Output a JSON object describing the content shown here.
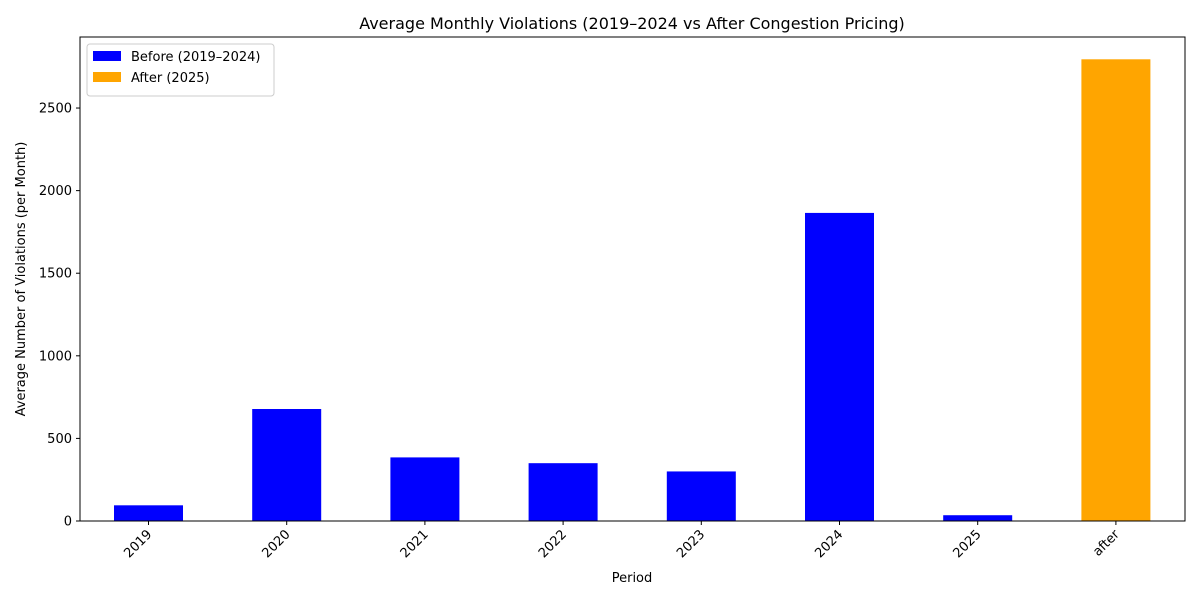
{
  "chart_data": {
    "type": "bar",
    "title": "Average Monthly Violations (2019–2024 vs After Congestion Pricing)",
    "xlabel": "Period",
    "ylabel": "Average Number of Violations (per Month)",
    "categories": [
      "2019",
      "2020",
      "2021",
      "2022",
      "2023",
      "2024",
      "2025",
      "after"
    ],
    "values": [
      95,
      678,
      385,
      350,
      300,
      1865,
      35,
      2795
    ],
    "bar_groups": [
      "before",
      "before",
      "before",
      "before",
      "before",
      "before",
      "before",
      "after"
    ],
    "ylim": [
      0,
      2930
    ],
    "yticks": [
      0,
      500,
      1000,
      1500,
      2000,
      2500
    ],
    "grid": false,
    "legend_position": "top-left",
    "legend": [
      {
        "key": "before",
        "label": "Before (2019–2024)",
        "color": "#0000ff"
      },
      {
        "key": "after",
        "label": "After (2025)",
        "color": "#ffa500"
      }
    ]
  }
}
